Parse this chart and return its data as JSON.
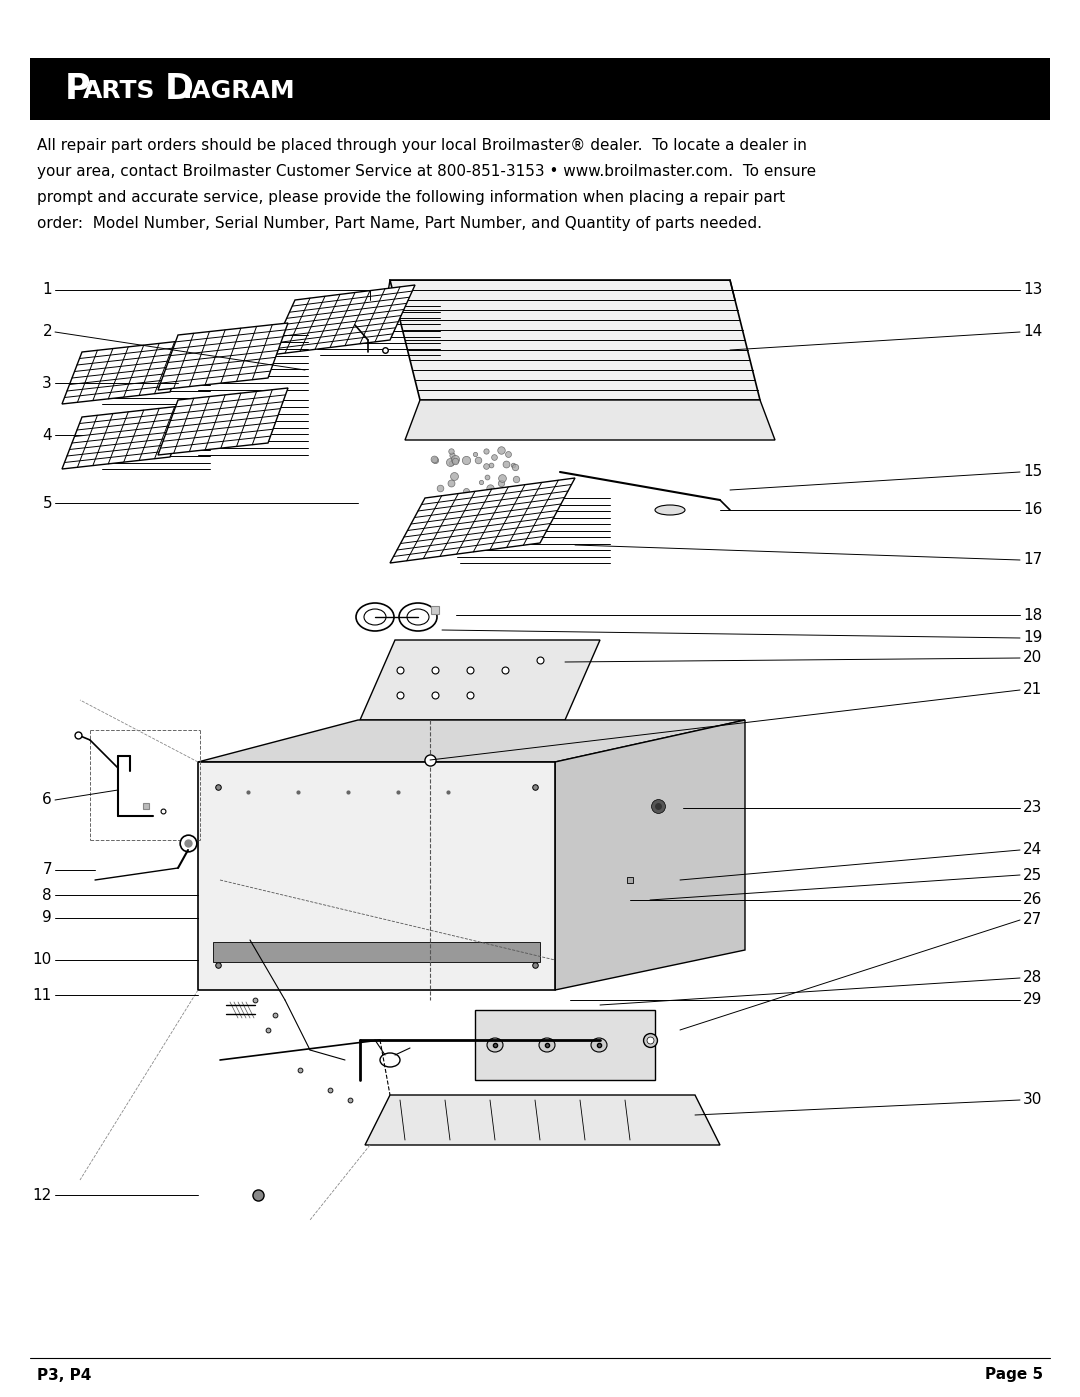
{
  "title_big": "P",
  "title_small1": "ARTS ",
  "title_big2": "D",
  "title_small2": "IAGRAM",
  "footer_left": "P3, P4",
  "footer_right": "Page 5",
  "body_text_line1": "All repair part orders should be placed through your local Broilmaster® dealer.  To locate a dealer in",
  "body_text_line2": "your area, contact Broilmaster Customer Service at 800-851-3153 • www.broilmaster.com.  To ensure",
  "body_text_line3": "prompt and accurate service, please provide the following information when placing a repair part",
  "body_text_line4": "order:  Model Number, Serial Number, Part Name, Part Number, and Quantity of parts needed.",
  "bg_color": "#ffffff",
  "header_bg": "#000000",
  "header_text_color": "#ffffff"
}
